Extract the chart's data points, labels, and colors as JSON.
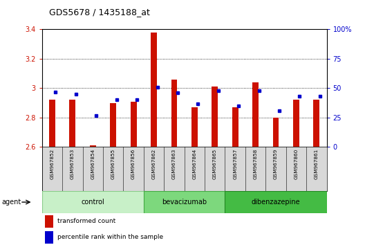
{
  "title": "GDS5678 / 1435188_at",
  "samples": [
    "GSM967852",
    "GSM967853",
    "GSM967854",
    "GSM967855",
    "GSM967856",
    "GSM967862",
    "GSM967863",
    "GSM967864",
    "GSM967865",
    "GSM967857",
    "GSM967858",
    "GSM967859",
    "GSM967860",
    "GSM967861"
  ],
  "transformed_count": [
    2.92,
    2.92,
    2.61,
    2.9,
    2.91,
    3.38,
    3.06,
    2.87,
    3.01,
    2.87,
    3.04,
    2.8,
    2.92,
    2.92
  ],
  "percentile_rank": [
    47,
    45,
    27,
    40,
    40,
    51,
    46,
    37,
    48,
    35,
    48,
    31,
    43,
    43
  ],
  "groups": [
    {
      "label": "control",
      "count": 5,
      "color_light": "#d4f5d4",
      "color_mid": "#a8e6a8"
    },
    {
      "label": "bevacizumab",
      "count": 4,
      "color_light": "#7dd87d",
      "color_mid": "#6bcb6b"
    },
    {
      "label": "dibenzazepine",
      "count": 5,
      "color_light": "#4ec94e",
      "color_mid": "#3db83d"
    }
  ],
  "ylim_left": [
    2.6,
    3.4
  ],
  "ylim_right": [
    0,
    100
  ],
  "yticks_left": [
    2.6,
    2.8,
    3.0,
    3.2,
    3.4
  ],
  "yticks_right": [
    0,
    25,
    50,
    75,
    100
  ],
  "ytick_right_labels": [
    "0",
    "25",
    "50",
    "75",
    "100%"
  ],
  "bar_color": "#cc1100",
  "dot_color": "#0000cc",
  "grid_color": "#000000",
  "agent_label": "agent"
}
